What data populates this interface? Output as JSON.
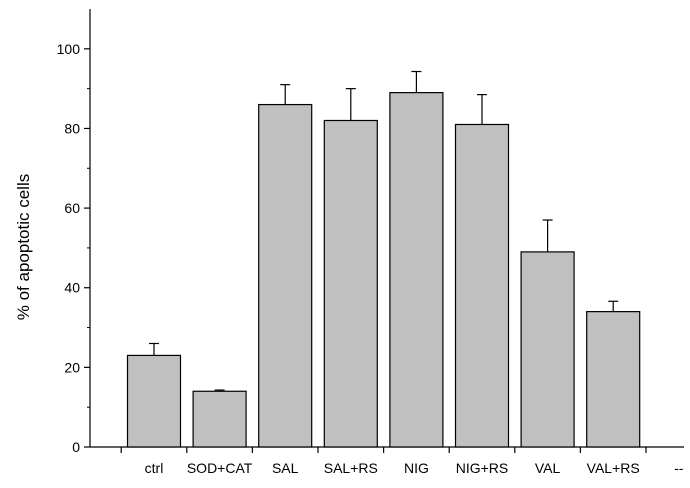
{
  "chart_data": {
    "type": "bar",
    "title": "",
    "xlabel": "",
    "ylabel": "% of apoptotic cells",
    "ylim": [
      0,
      110
    ],
    "yticks": [
      0,
      20,
      40,
      60,
      80,
      100
    ],
    "yticks_labels": [
      "0",
      "20",
      "40",
      "60",
      "80",
      "100"
    ],
    "categories": [
      "ctrl",
      "SOD+CAT",
      "SAL",
      "SAL+RS",
      "NIG",
      "NIG+RS",
      "VAL",
      "VAL+RS",
      "--"
    ],
    "values": [
      23,
      14,
      86,
      82,
      89,
      81,
      49,
      34,
      null
    ],
    "errors": [
      3,
      0.3,
      5,
      8,
      5.3,
      7.5,
      8,
      2.6,
      null
    ],
    "bar_color": "#c0c0c0",
    "bar_edge_color": "#000000",
    "grid": false,
    "legend": "none"
  }
}
